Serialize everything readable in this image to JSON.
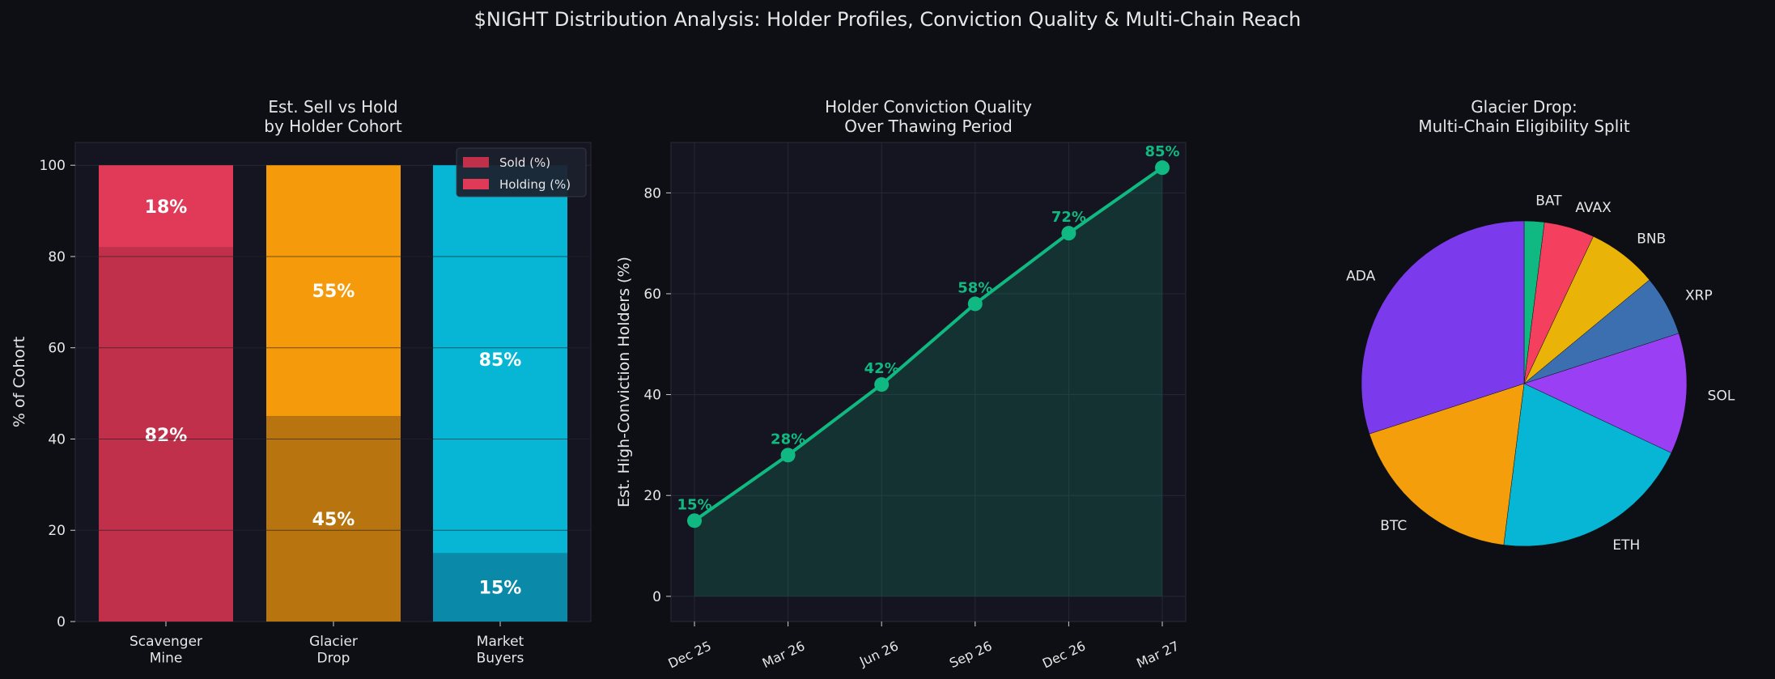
{
  "suptitle": "$NIGHT Distribution Analysis: Holder Profiles, Conviction Quality & Multi-Chain Reach",
  "colors": {
    "background": "#0d0f14",
    "panel": "#141520",
    "text": "#e6e6e6",
    "sold": "#c0304a",
    "holding": "#e03a58",
    "glacier_sold": "#b8740f",
    "glacier_holding": "#f59a0b",
    "market_sold": "#0a8aa8",
    "market_holding": "#06b6d4",
    "line": "#10b981"
  },
  "chart_data": [
    {
      "type": "bar",
      "title": "Est. Sell vs Hold\nby Holder Cohort",
      "ylabel": "% of Cohort",
      "xlabel": "",
      "categories": [
        "Scavenger\nMine",
        "Glacier\nDrop",
        "Market\nBuyers"
      ],
      "series": [
        {
          "name": "Sold (%)",
          "values": [
            82,
            45,
            15
          ]
        },
        {
          "name": "Holding (%)",
          "values": [
            18,
            55,
            85
          ]
        }
      ],
      "ylim": [
        0,
        105
      ],
      "yticks": [
        0,
        20,
        40,
        60,
        80,
        100
      ],
      "grid": true,
      "legend": "top-right",
      "stacked": true
    },
    {
      "type": "area",
      "title": "Holder Conviction Quality\nOver Thawing Period",
      "ylabel": "Est. High-Conviction Holders (%)",
      "xlabel": "",
      "categories": [
        "Dec 25",
        "Mar 26",
        "Jun 26",
        "Sep 26",
        "Dec 26",
        "Mar 27"
      ],
      "values": [
        15,
        28,
        42,
        58,
        72,
        85
      ],
      "labels": [
        "15%",
        "28%",
        "42%",
        "58%",
        "72%",
        "85%"
      ],
      "ylim": [
        -5,
        90
      ],
      "yticks": [
        0,
        20,
        40,
        60,
        80
      ],
      "grid": true
    },
    {
      "type": "pie",
      "title": "Glacier Drop:\nMulti-Chain Eligibility Split",
      "slices": [
        {
          "label": "BAT",
          "value": 2,
          "color": "#10b981"
        },
        {
          "label": "AVAX",
          "value": 5,
          "color": "#f43f5e"
        },
        {
          "label": "BNB",
          "value": 7,
          "color": "#eab308"
        },
        {
          "label": "XRP",
          "value": 6,
          "color": "#3b6fb0"
        },
        {
          "label": "SOL",
          "value": 12,
          "color": "#9b3ff5"
        },
        {
          "label": "ETH",
          "value": 20,
          "color": "#06b6d4"
        },
        {
          "label": "BTC",
          "value": 18,
          "color": "#f59e0b"
        },
        {
          "label": "ADA",
          "value": 30,
          "color": "#7c3aed"
        }
      ]
    }
  ]
}
